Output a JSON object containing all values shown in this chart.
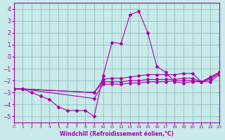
{
  "title": "",
  "xlabel": "Windchill (Refroidissement éolien,°C)",
  "ylabel": "",
  "background_color": "#c8eaea",
  "grid_color": "#a0c8c8",
  "line_color": "#aa00aa",
  "xlim": [
    0,
    23
  ],
  "ylim": [
    -5.5,
    4.5
  ],
  "yticks": [
    -5,
    -4,
    -3,
    -2,
    -1,
    0,
    1,
    2,
    3,
    4
  ],
  "xticks": [
    0,
    1,
    2,
    3,
    4,
    5,
    6,
    7,
    8,
    9,
    10,
    11,
    12,
    13,
    14,
    15,
    16,
    17,
    18,
    19,
    20,
    21,
    22,
    23
  ],
  "series": [
    {
      "x": [
        0,
        1,
        2,
        3,
        4,
        5,
        6,
        7,
        8,
        9,
        10,
        11,
        12,
        13,
        14,
        15,
        16,
        17,
        18,
        19,
        20,
        21,
        22,
        23
      ],
      "y": [
        -2.7,
        -2.7,
        -3.0,
        -3.3,
        -3.6,
        -4.2,
        -4.5,
        -4.5,
        -4.5,
        -5.0,
        -1.6,
        1.2,
        1.1,
        3.5,
        3.8,
        2.0,
        -0.8,
        -1.3,
        -2.1,
        -2.2,
        -2.1,
        -2.1,
        -1.8,
        -1.3
      ]
    },
    {
      "x": [
        0,
        1,
        9,
        10,
        11,
        12,
        13,
        14,
        15,
        16,
        17,
        18,
        19,
        20,
        21,
        22,
        23
      ],
      "y": [
        -2.7,
        -2.7,
        -3.0,
        -1.9,
        -1.8,
        -1.8,
        -1.7,
        -1.6,
        -1.5,
        -1.5,
        -1.5,
        -1.5,
        -1.4,
        -1.4,
        -2.1,
        -1.7,
        -1.3
      ]
    },
    {
      "x": [
        0,
        1,
        9,
        10,
        11,
        12,
        13,
        14,
        15,
        16,
        17,
        18,
        19,
        20,
        21,
        22,
        23
      ],
      "y": [
        -2.7,
        -2.7,
        -3.0,
        -2.1,
        -2.1,
        -2.1,
        -2.0,
        -2.0,
        -1.9,
        -1.9,
        -1.9,
        -1.9,
        -1.8,
        -1.8,
        -2.1,
        -1.9,
        -1.4
      ]
    },
    {
      "x": [
        0,
        1,
        9,
        10,
        11,
        12,
        13,
        14,
        15,
        16,
        17,
        18,
        19,
        20,
        21,
        22,
        23
      ],
      "y": [
        -2.7,
        -2.7,
        -3.5,
        -2.3,
        -2.3,
        -2.3,
        -2.2,
        -2.2,
        -2.1,
        -2.1,
        -2.1,
        -2.0,
        -2.0,
        -2.0,
        -2.1,
        -2.1,
        -1.5
      ]
    }
  ]
}
